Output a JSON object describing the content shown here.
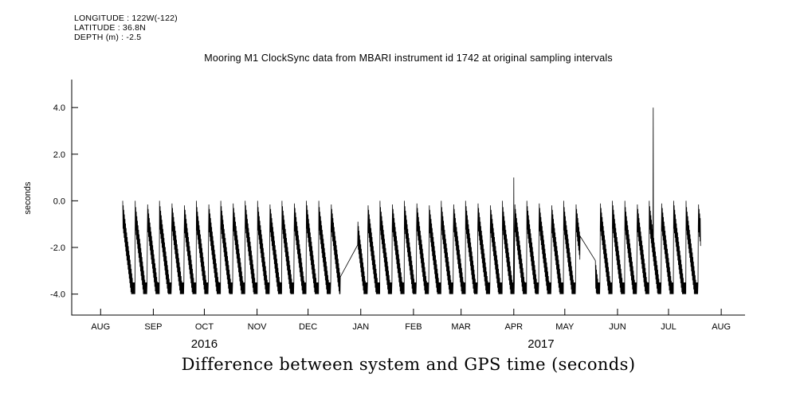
{
  "background": "#ffffff",
  "header": {
    "longitude": "LONGITUDE : 122W(-122)",
    "latitude": "LATITUDE : 36.8N",
    "depth": "DEPTH (m) : -2.5"
  },
  "chart_data": {
    "type": "line",
    "title": "Mooring M1 ClockSync data from MBARI instrument id 1742 at original sampling intervals",
    "caption": "Difference between system and GPS time (seconds)",
    "ylabel": "seconds",
    "line_color": "#000000",
    "ylim": [
      -4.9,
      5.2
    ],
    "yticks": [
      {
        "label": "4.0",
        "value": 4.0
      },
      {
        "label": "2.0",
        "value": 2.0
      },
      {
        "label": "0.0",
        "value": 0.0
      },
      {
        "label": "-2.0",
        "value": -2.0
      },
      {
        "label": "-4.0",
        "value": -4.0
      }
    ],
    "x_domain_days": 396,
    "xticks": [
      {
        "label": "AUG",
        "day": 17
      },
      {
        "label": "SEP",
        "day": 48
      },
      {
        "label": "OCT",
        "day": 78
      },
      {
        "label": "NOV",
        "day": 109
      },
      {
        "label": "DEC",
        "day": 139
      },
      {
        "label": "JAN",
        "day": 170
      },
      {
        "label": "FEB",
        "day": 201
      },
      {
        "label": "MAR",
        "day": 229
      },
      {
        "label": "APR",
        "day": 260
      },
      {
        "label": "MAY",
        "day": 290
      },
      {
        "label": "JUN",
        "day": 321
      },
      {
        "label": "JUL",
        "day": 351
      },
      {
        "label": "AUG",
        "day": 382
      }
    ],
    "year_labels": [
      {
        "label": "2016",
        "day": 78
      },
      {
        "label": "2017",
        "day": 276
      }
    ],
    "series_note": "Sawtooth clock-drift signal: system clock repeatedly drifts from 0 down toward -4 s then resets to 0, with a ~1 s thick oscillation band; data gaps bridged by straight lines; two positive spikes.",
    "signal": {
      "start_day": 30,
      "end_day": 370,
      "cycle_days": 7.2,
      "samples_per_day": 6,
      "top_slope": -4.2,
      "top_floor": -3.5,
      "band_width": 1.1,
      "min": -4.0,
      "reset_value": 0.0
    },
    "gaps": [
      {
        "start_day": 158,
        "end_day": 168
      },
      {
        "start_day": 299,
        "end_day": 308
      }
    ],
    "spikes": [
      {
        "day": 260,
        "value": 1.0
      },
      {
        "day": 342,
        "value": 4.0
      }
    ]
  }
}
